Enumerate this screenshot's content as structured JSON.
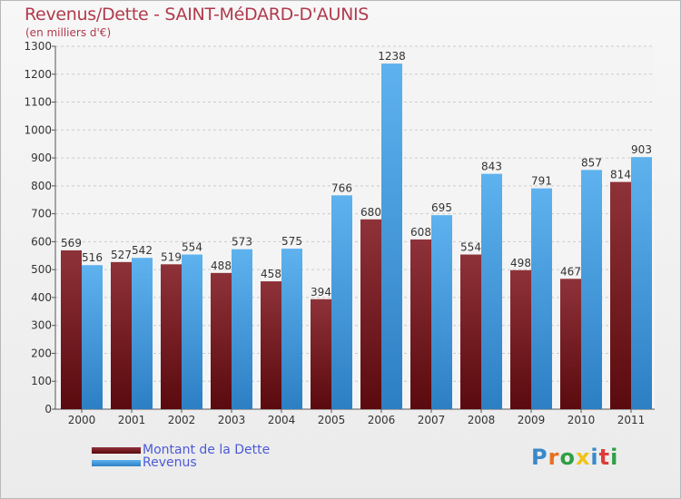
{
  "title": "Revenus/Dette - SAINT-MéDARD-D'AUNIS",
  "subtitle": "(en milliers d'€)",
  "logo": {
    "letters": [
      "P",
      "r",
      "o",
      "x",
      "i",
      "t",
      "i"
    ],
    "colors": [
      "#3a89c9",
      "#e86f1f",
      "#2f9f45",
      "#f0c419",
      "#3a89c9",
      "#e03b3b",
      "#2f9f45"
    ]
  },
  "colors": {
    "dette": "#7a1f25",
    "revenus": "#4a9fe0"
  },
  "chart_data": {
    "type": "bar",
    "title": "Revenus/Dette - SAINT-MéDARD-D'AUNIS",
    "subtitle": "(en milliers d'€)",
    "categories": [
      "2000",
      "2001",
      "2002",
      "2003",
      "2004",
      "2005",
      "2006",
      "2007",
      "2008",
      "2009",
      "2010",
      "2011"
    ],
    "series": [
      {
        "name": "Montant de la Dette",
        "values": [
          569,
          527,
          519,
          488,
          458,
          394,
          680,
          608,
          554,
          498,
          467,
          814
        ]
      },
      {
        "name": "Revenus",
        "values": [
          516,
          542,
          554,
          573,
          575,
          766,
          1238,
          695,
          843,
          791,
          857,
          903
        ]
      }
    ],
    "ylim": [
      0,
      1300
    ],
    "yticks": [
      0,
      100,
      200,
      300,
      400,
      500,
      600,
      700,
      800,
      900,
      1000,
      1100,
      1200,
      1300
    ],
    "grid": true,
    "legend": "bottom-left"
  }
}
